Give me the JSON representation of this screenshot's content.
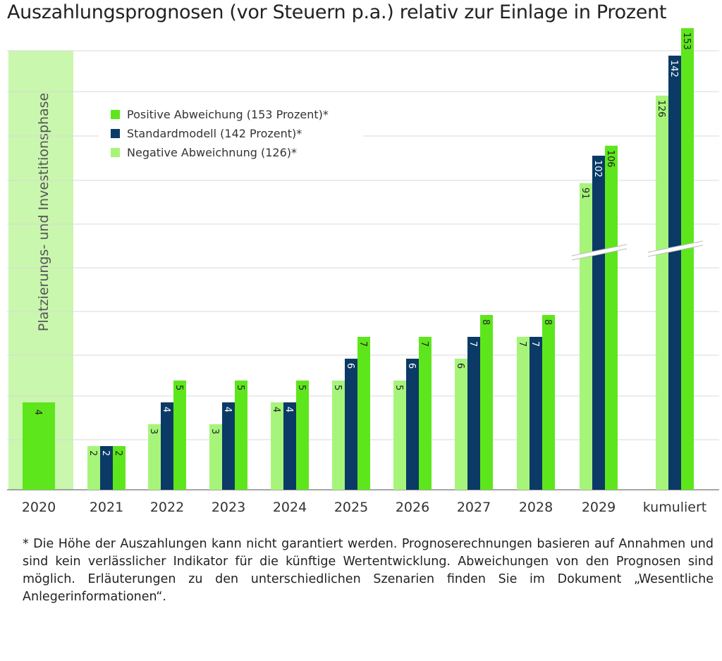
{
  "chart_data": {
    "type": "bar",
    "title": "Auszahlungsprognosen (vor Steuern p.a.) relativ zur Einlage in Prozent",
    "xlabel": "",
    "ylabel": "",
    "categories": [
      "2020",
      "2021",
      "2022",
      "2023",
      "2024",
      "2025",
      "2026",
      "2027",
      "2028",
      "2029",
      "kumuliert"
    ],
    "series": [
      {
        "name": "Negative Abweichnung (126)*",
        "color": "#a6f57a",
        "values": [
          null,
          2,
          3,
          3,
          4,
          5,
          5,
          6,
          7,
          91,
          126
        ]
      },
      {
        "name": "Standardmodell (142 Prozent)*",
        "color": "#0b3a66",
        "values": [
          4,
          2,
          4,
          4,
          4,
          6,
          6,
          7,
          7,
          102,
          142
        ]
      },
      {
        "name": "Positive Abweichung (153 Prozent)*",
        "color": "#5ee61c",
        "values": [
          null,
          2,
          5,
          5,
          5,
          7,
          7,
          8,
          8,
          106,
          153
        ]
      }
    ],
    "first_category_color": "#5ee61c",
    "axis_break": true,
    "grid": true,
    "legend_position": "top-left",
    "legend_order": [
      "Positive Abweichung (153 Prozent)*",
      "Standardmodell (142 Prozent)*",
      "Negative Abweichnung (126)*"
    ],
    "shaded_region": {
      "category": "2020",
      "label": "Platzierungs- und Investitionsphase",
      "color": "#c9f7ad"
    }
  },
  "footnote": "* Die Höhe der Auszahlungen kann nicht garantiert werden. Prognoserechnungen basieren auf Annahmen und sind kein verlässlicher Indikator für die künftige Wertentwicklung. Abweichungen von den Prognosen sind möglich. Erläuterungen zu den unterschiedlichen Szenarien finden Sie im Dokument „Wesentliche Anlegerinformationen“."
}
